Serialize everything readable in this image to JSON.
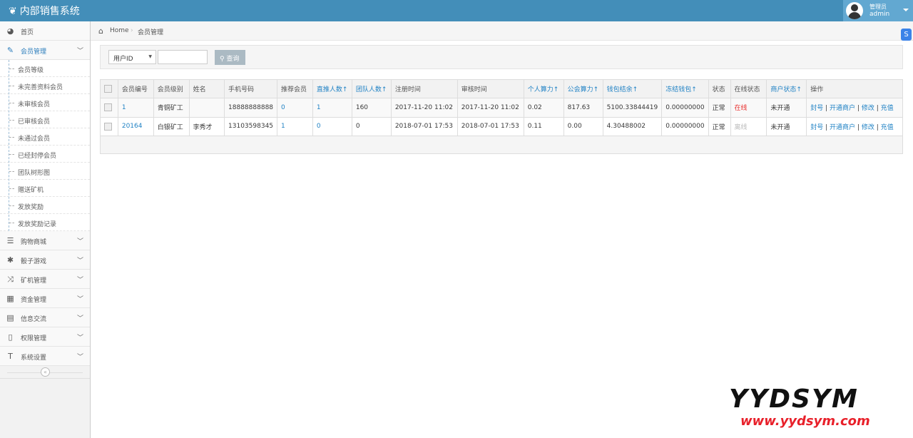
{
  "app": {
    "title": "内部销售系统",
    "role": "管理员",
    "username": "admin"
  },
  "sidebar": {
    "items": [
      {
        "label": "首页",
        "icon": "dashboard-icon",
        "glyph": "◕"
      },
      {
        "label": "会员管理",
        "icon": "edit-icon",
        "glyph": "✎",
        "active": true,
        "children": [
          "会员等级",
          "未完善资料会员",
          "未审核会员",
          "已审核会员",
          "未通过会员",
          "已经封停会员",
          "团队树形图",
          "赠送矿机",
          "发放奖励",
          "发放奖励记录"
        ]
      },
      {
        "label": "购物商城",
        "icon": "list-icon",
        "glyph": "☰"
      },
      {
        "label": "骰子游戏",
        "icon": "asterisk-icon",
        "glyph": "✱"
      },
      {
        "label": "矿机管理",
        "icon": "random-icon",
        "glyph": "⤨"
      },
      {
        "label": "资金管理",
        "icon": "calendar-icon",
        "glyph": "▦"
      },
      {
        "label": "信息交流",
        "icon": "list-alt-icon",
        "glyph": "▤"
      },
      {
        "label": "权限管理",
        "icon": "file-icon",
        "glyph": "▯"
      },
      {
        "label": "系统设置",
        "icon": "text-icon",
        "glyph": "T"
      }
    ],
    "collapse_glyph": "«"
  },
  "breadcrumb": {
    "home": "Home",
    "current": "会员管理"
  },
  "search": {
    "field": "用户ID",
    "value": "",
    "button": "查询"
  },
  "table": {
    "headers": [
      {
        "t": "会员编号"
      },
      {
        "t": "会员级别"
      },
      {
        "t": "姓名"
      },
      {
        "t": "手机号码"
      },
      {
        "t": "推荐会员"
      },
      {
        "t": "直推人数↑",
        "sort": true
      },
      {
        "t": "团队人数↑",
        "sort": true
      },
      {
        "t": "注册时间"
      },
      {
        "t": "审核时间"
      },
      {
        "t": "个人算力↑",
        "sort": true
      },
      {
        "t": "公会算力↑",
        "sort": true
      },
      {
        "t": "钱包结余↑",
        "sort": true
      },
      {
        "t": "冻结钱包↑",
        "sort": true
      },
      {
        "t": "状态"
      },
      {
        "t": "在线状态"
      },
      {
        "t": "商户状态↑",
        "sort": true
      },
      {
        "t": "操作"
      }
    ],
    "rows": [
      {
        "id": "1",
        "level": "青铜矿工",
        "name": "",
        "phone": "18888888888",
        "referrer": "0",
        "direct": "1",
        "team": "160",
        "reg": "2017-11-20 11:02",
        "audit": "2017-11-20 11:02",
        "power": "0.02",
        "guild": "817.63",
        "wallet": "5100.33844419",
        "frozen": "0.00000000",
        "status": "正常",
        "online": "在线",
        "online_flag": true,
        "merchant": "未开通"
      },
      {
        "id": "20164",
        "level": "白银矿工",
        "name": "李秀才",
        "phone": "13103598345",
        "referrer": "1",
        "direct": "0",
        "team": "0",
        "reg": "2018-07-01 17:53",
        "audit": "2018-07-01 17:53",
        "power": "0.11",
        "guild": "0.00",
        "wallet": "4.30488002",
        "frozen": "0.00000000",
        "status": "正常",
        "online": "离线",
        "online_flag": false,
        "merchant": "未开通"
      }
    ],
    "actions": [
      "封号",
      "开通商户",
      "修改",
      "充值"
    ]
  },
  "watermark": {
    "logo": "YYDSYM",
    "url": "www.yydsym.com"
  }
}
